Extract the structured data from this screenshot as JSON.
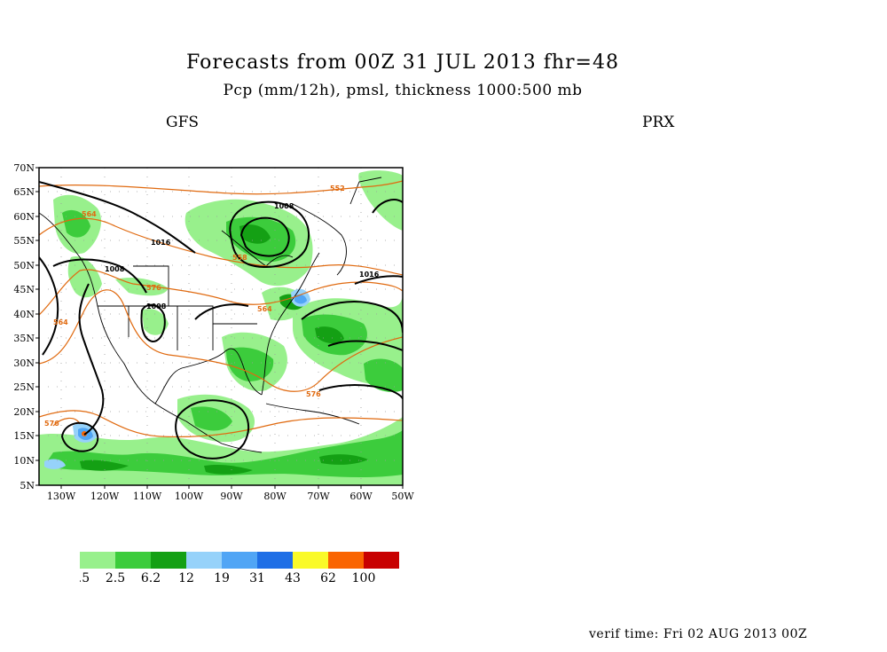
{
  "header": {
    "title": "Forecasts from 00Z 31 JUL 2013   fhr=48",
    "subtitle": "Pcp (mm/12h), pmsl, thickness 1000:500 mb",
    "model_left": "GFS",
    "model_right": "PRX"
  },
  "map": {
    "lat_labels": [
      "70N",
      "65N",
      "60N",
      "55N",
      "50N",
      "45N",
      "40N",
      "35N",
      "30N",
      "25N",
      "20N",
      "15N",
      "10N",
      "5N"
    ],
    "lon_labels": [
      "130W",
      "120W",
      "110W",
      "100W",
      "90W",
      "80W",
      "70W",
      "60W",
      "50W"
    ],
    "isobar_labels": [
      "1008",
      "1016",
      "1008",
      "1008",
      "1016"
    ],
    "thickness_labels": [
      "552",
      "564",
      "558",
      "576",
      "564",
      "564",
      "576",
      "576"
    ],
    "colors": {
      "isobar": "#000000",
      "thickness": "#e06a10",
      "coast": "#000000"
    }
  },
  "legend": {
    "labels": [
      "0.5",
      "2.5",
      "6.2",
      "12",
      "19",
      "31",
      "43",
      "62",
      "100"
    ],
    "colors": [
      "#98f08c",
      "#3ccc3c",
      "#14a014",
      "#96d2fa",
      "#50a5f5",
      "#1e6ee6",
      "#fafa28",
      "#fa6400",
      "#c80000"
    ]
  },
  "footer": {
    "verif_time": "verif time: Fri 02 AUG 2013 00Z"
  }
}
